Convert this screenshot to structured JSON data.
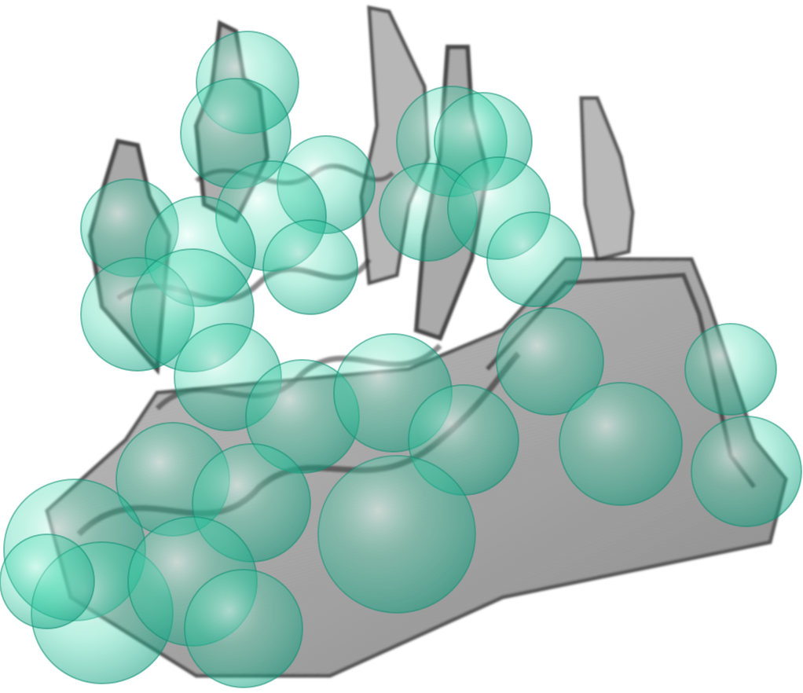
{
  "scene": {
    "subject": "volumetric-render-with-spheres",
    "background_color": "#ffffff",
    "sphere_color": "#2fd1a6",
    "sphere_rim_color": "#0e8f74",
    "volume_color": "#8a8a8a",
    "volume_edge_color": "#2e2e2e"
  }
}
